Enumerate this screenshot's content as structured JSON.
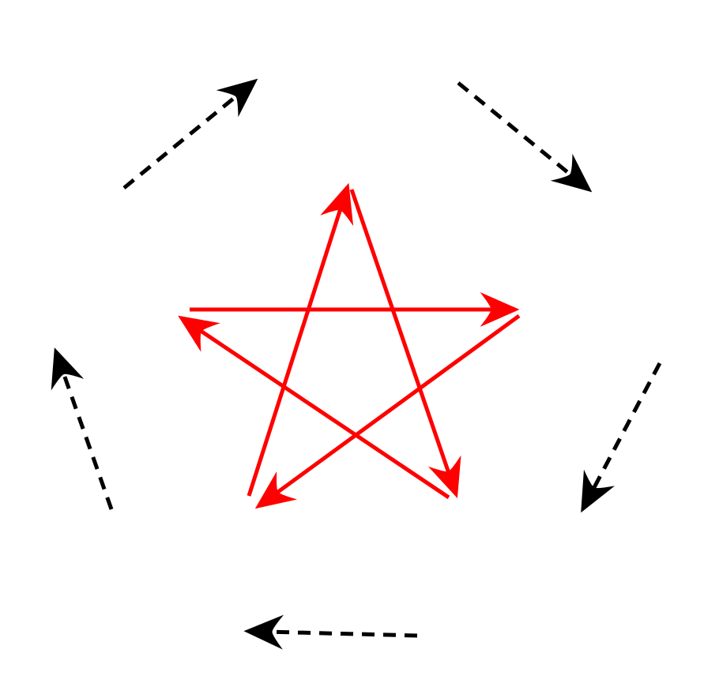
{
  "diagram": {
    "outer_ring": {
      "color": "#000000",
      "line_style": "dashed",
      "direction": "clockwise",
      "arrow_count": 5
    },
    "inner_star": {
      "color": "#ff0000",
      "line_style": "solid",
      "shape": "pentagram",
      "arrow_count": 5
    },
    "background": "#ffffff"
  }
}
